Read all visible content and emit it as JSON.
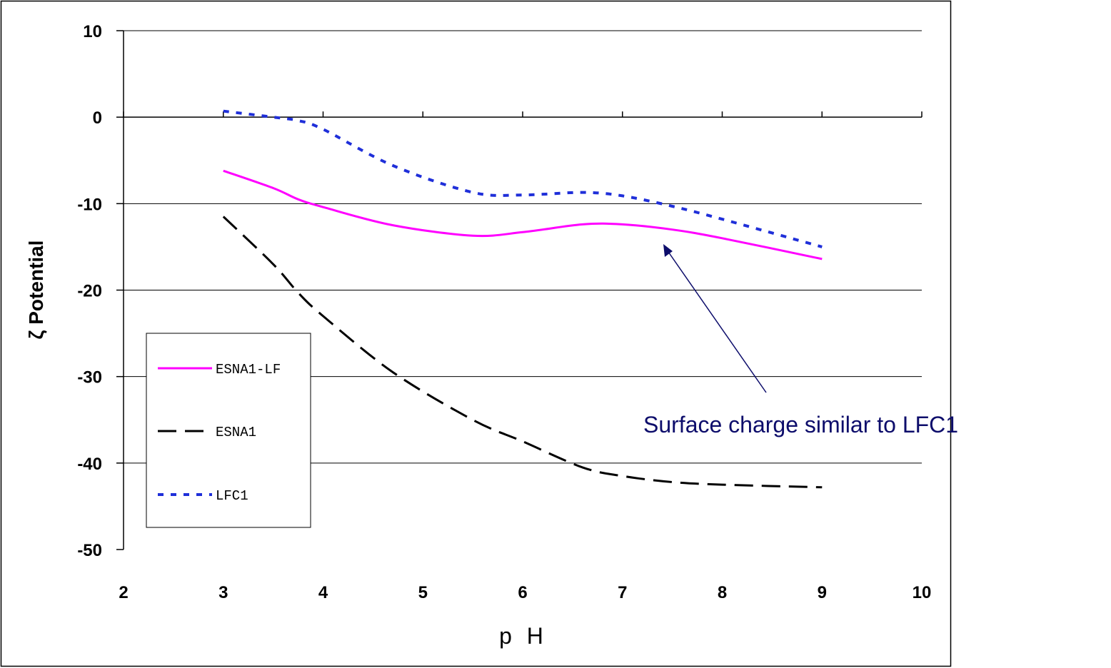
{
  "chart_data": {
    "type": "line",
    "xlabel": "p H",
    "ylabel": "ζ Potential",
    "xlim": [
      2,
      10
    ],
    "ylim": [
      -50,
      10
    ],
    "xticks": [
      2,
      3,
      4,
      5,
      6,
      7,
      8,
      9,
      10
    ],
    "yticks": [
      10,
      0,
      -10,
      -20,
      -30,
      -40,
      -50
    ],
    "grid": "horizontal",
    "legend_position": "left",
    "series": [
      {
        "name": "ESNA1-LF",
        "color": "#ff00ff",
        "style": "solid",
        "x": [
          3,
          3.5,
          3.75,
          4,
          4.7,
          5.5,
          6,
          6.6,
          7,
          7.5,
          8,
          9
        ],
        "y": [
          -6.2,
          -8.2,
          -9.5,
          -10.4,
          -12.5,
          -13.7,
          -13.3,
          -12.4,
          -12.4,
          -13,
          -14,
          -16.4
        ]
      },
      {
        "name": "ESNA1",
        "color": "#000000",
        "style": "dashed",
        "x": [
          3,
          3.5,
          3.75,
          4,
          4.7,
          5.5,
          6,
          6.6,
          7,
          7.5,
          8,
          9
        ],
        "y": [
          -11.5,
          -17,
          -20.3,
          -23,
          -29.5,
          -35,
          -37.5,
          -40.5,
          -41.5,
          -42.2,
          -42.5,
          -42.8
        ]
      },
      {
        "name": "LFC1",
        "color": "#1f2fd9",
        "style": "dotted",
        "x": [
          3,
          3.5,
          3.75,
          4,
          4.7,
          5.5,
          6,
          6.6,
          7,
          7.5,
          8,
          9
        ],
        "y": [
          0.7,
          0,
          -0.4,
          -1.4,
          -5.6,
          -8.7,
          -9,
          -8.7,
          -9.1,
          -10.3,
          -11.8,
          -15
        ]
      }
    ],
    "annotation": {
      "text": "Surface charge similar to LFC1",
      "color": "#0d0d6b",
      "points_to": {
        "x": 7.4,
        "y": -15
      }
    }
  }
}
